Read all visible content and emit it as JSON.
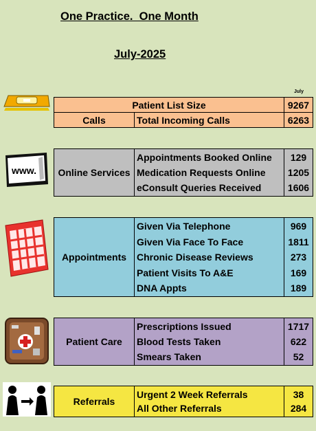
{
  "header": {
    "title": "One Practice.  One Month",
    "subtitle": "July-2025",
    "month_label": "July"
  },
  "colors": {
    "background": "#d8e4bc",
    "calls": "#fac090",
    "online": "#bfbfbf",
    "appointments": "#92cddc",
    "patient_care": "#b3a2c7",
    "referrals": "#f5e642"
  },
  "calls": {
    "patient_list_label": "Patient List Size",
    "patient_list_value": "9267",
    "section_label": "Calls",
    "incoming_label": "Total Incoming Calls",
    "incoming_value": "6263"
  },
  "online": {
    "section_label": "Online Services",
    "rows": [
      {
        "label": "Appointments Booked Online",
        "value": "129"
      },
      {
        "label": "Medication Requests Online",
        "value": "1205"
      },
      {
        "label": "eConsult Queries Received",
        "value": "1606"
      }
    ]
  },
  "appointments": {
    "section_label": "Appointments",
    "rows": [
      {
        "label": "Given Via Telephone",
        "value": "969"
      },
      {
        "label": "Given Via Face To Face",
        "value": "1811"
      },
      {
        "label": "Chronic Disease Reviews",
        "value": "273"
      },
      {
        "label": "Patient Visits To A&E",
        "value": "169"
      },
      {
        "label": "DNA Appts",
        "value": "189"
      }
    ]
  },
  "patient_care": {
    "section_label": "Patient Care",
    "rows": [
      {
        "label": "Prescriptions Issued",
        "value": "1717"
      },
      {
        "label": "Blood Tests Taken",
        "value": "622"
      },
      {
        "label": "Smears Taken",
        "value": "52"
      }
    ]
  },
  "referrals": {
    "section_label": "Referrals",
    "rows": [
      {
        "label": "Urgent 2 Week Referrals",
        "value": "38"
      },
      {
        "label": "All Other Referrals",
        "value": "284"
      }
    ]
  },
  "icons": [
    "telephone-icon",
    "web-browser-icon",
    "calendar-icon",
    "medical-kit-icon",
    "referral-people-icon"
  ]
}
